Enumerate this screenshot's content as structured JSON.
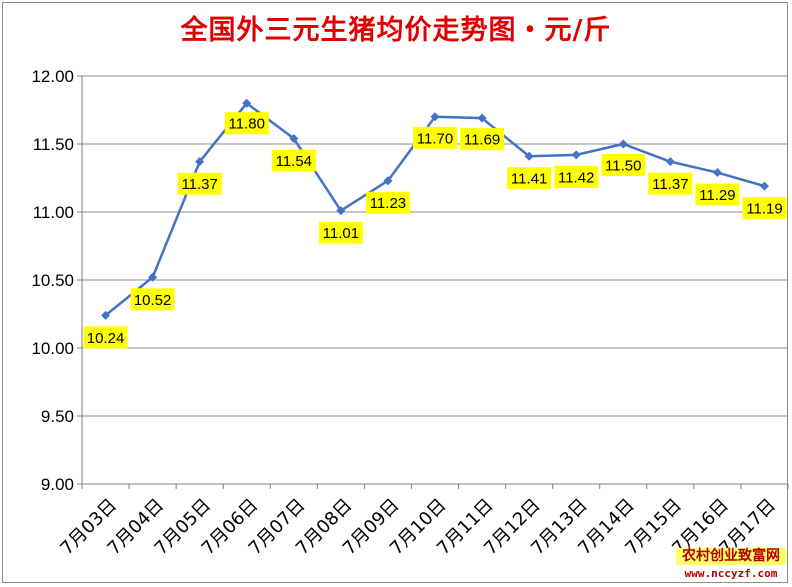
{
  "chart_data": {
    "type": "line",
    "title": "全国外三元生猪均价走势图・元/斤",
    "xlabel": "",
    "ylabel": "",
    "categories": [
      "7月03日",
      "7月04日",
      "7月05日",
      "7月06日",
      "7月07日",
      "7月08日",
      "7月09日",
      "7月10日",
      "7月11日",
      "7月12日",
      "7月13日",
      "7月14日",
      "7月15日",
      "7月16日",
      "7月17日"
    ],
    "series": [
      {
        "values": [
          10.24,
          10.52,
          11.37,
          11.8,
          11.54,
          11.01,
          11.23,
          11.7,
          11.69,
          11.41,
          11.42,
          11.5,
          11.37,
          11.29,
          11.19
        ],
        "labels": [
          "10.24",
          "10.52",
          "11.37",
          "11.80",
          "11.54",
          "11.01",
          "11.23",
          "11.70",
          "11.69",
          "11.41",
          "11.42",
          "11.50",
          "11.37",
          "11.29",
          "11.19"
        ]
      }
    ],
    "yticks": [
      "9.00",
      "9.50",
      "10.00",
      "10.50",
      "11.00",
      "11.50",
      "12.00"
    ],
    "ylim": [
      9.0,
      12.0
    ],
    "grid": true,
    "legend": "none",
    "colors": {
      "line": "#4472c4",
      "label_bg": "#ffff00",
      "grid": "#8c8c8c",
      "title": "#e00000"
    }
  },
  "watermark": {
    "line1": "农村创业致富网",
    "line2": "www.nccyzf.com"
  }
}
